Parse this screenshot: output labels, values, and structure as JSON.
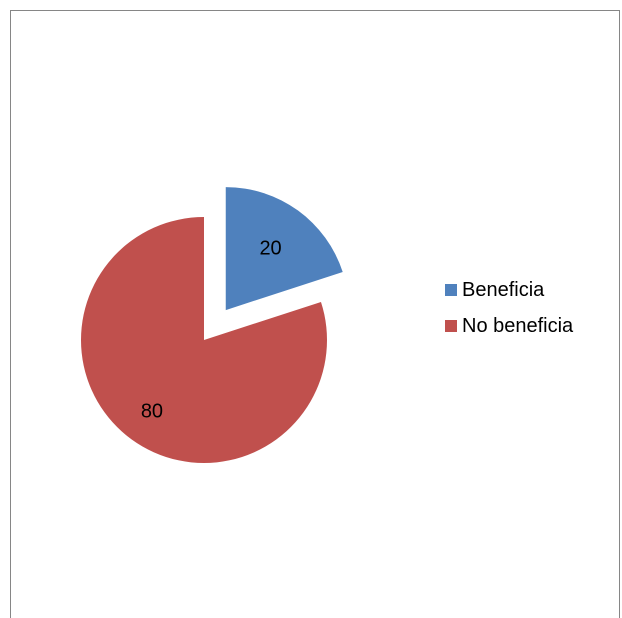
{
  "chart_data": {
    "type": "pie",
    "categories": [
      "Beneficia",
      "No beneficia"
    ],
    "values": [
      20,
      80
    ],
    "data_labels": [
      "20",
      "80"
    ],
    "colors": [
      "#4F81BD",
      "#C0504D"
    ],
    "exploded_slice": "Beneficia",
    "legend": {
      "position": "right",
      "entries": [
        "Beneficia",
        "No beneficia"
      ]
    }
  }
}
